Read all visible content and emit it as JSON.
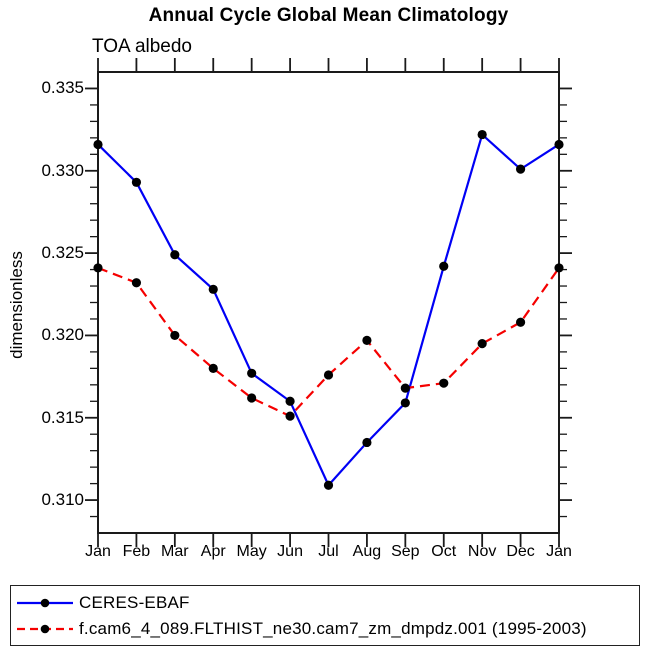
{
  "chart_data": {
    "type": "line",
    "title": "Annual Cycle Global Mean Climatology",
    "subtitle": "TOA albedo",
    "ylabel": "dimensionless",
    "xlabel": "",
    "categories": [
      "Jan",
      "Feb",
      "Mar",
      "Apr",
      "May",
      "Jun",
      "Jul",
      "Aug",
      "Sep",
      "Oct",
      "Nov",
      "Dec",
      "Jan"
    ],
    "series": [
      {
        "name": "CERES-EBAF",
        "color": "#0000f5",
        "line_style": "solid",
        "marker": "filled-circle",
        "marker_color": "#000000",
        "values": [
          0.3316,
          0.3293,
          0.3249,
          0.3228,
          0.3177,
          0.316,
          0.3109,
          0.3135,
          0.3159,
          0.3242,
          0.3322,
          0.3301,
          0.3316
        ]
      },
      {
        "name": "f.cam6_4_089.FLTHIST_ne30.cam7_zm_dmpdz.001 (1995-2003)",
        "color": "#f50000",
        "line_style": "dashed",
        "marker": "filled-circle",
        "marker_color": "#000000",
        "values": [
          0.3241,
          0.3232,
          0.32,
          0.318,
          0.3162,
          0.3151,
          0.3176,
          0.3197,
          0.3168,
          0.3171,
          0.3195,
          0.3208,
          0.3241
        ]
      }
    ],
    "ylim": [
      0.308,
      0.336
    ],
    "yticks_major": [
      0.31,
      0.315,
      0.32,
      0.325,
      0.33,
      0.335
    ],
    "ytick_labels": [
      "0.310",
      "0.315",
      "0.320",
      "0.325",
      "0.330",
      "0.335"
    ],
    "ytick_minor_step": 0.001,
    "grid": false,
    "tick_direction": "out",
    "legend_position": "bottom-box"
  },
  "colors": {
    "axis": "#1a1a1a",
    "background": "#ffffff"
  }
}
